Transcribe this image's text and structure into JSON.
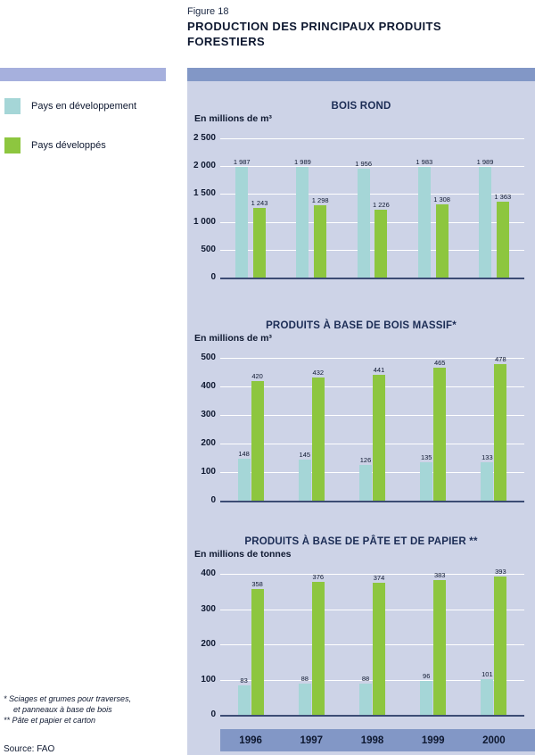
{
  "figure": {
    "label": "Figure 18",
    "title_line1": "PRODUCTION DES PRINCIPAUX PRODUITS",
    "title_line2": "FORESTIERS"
  },
  "legend": {
    "items": [
      {
        "label": "Pays en développement",
        "color": "#a5d6d7"
      },
      {
        "label": "Pays développés",
        "color": "#8dc63f"
      }
    ]
  },
  "footnotes": {
    "line1": "*  Sciages et grumes pour traverses,",
    "line2": "et panneaux à base de bois",
    "line3": "** Pâte et papier et carton"
  },
  "source": "Source: FAO",
  "colors": {
    "panel_bg": "#cdd3e7",
    "header_bar": "#8297c6",
    "left_deco_bar": "#a6b0dd",
    "developing": "#a5d6d7",
    "developed": "#8dc63f",
    "axis": "#3c4c74",
    "gridline": "#ffffff"
  },
  "x_axis": {
    "years": [
      "1996",
      "1997",
      "1998",
      "1999",
      "2000"
    ]
  },
  "chart_data": [
    {
      "type": "bar",
      "title": "BOIS ROND",
      "unit": "En millions de m³",
      "categories": [
        "1996",
        "1997",
        "1998",
        "1999",
        "2000"
      ],
      "series": [
        {
          "name": "Pays en développement",
          "color": "#a5d6d7",
          "values": [
            1987,
            1989,
            1956,
            1983,
            1989
          ]
        },
        {
          "name": "Pays développés",
          "color": "#8dc63f",
          "values": [
            1243,
            1298,
            1226,
            1308,
            1363
          ]
        }
      ],
      "ylim": [
        0,
        2500
      ],
      "yticks": [
        0,
        500,
        1000,
        1500,
        2000,
        2500
      ],
      "grid": true,
      "legend_position": "left"
    },
    {
      "type": "bar",
      "title": "PRODUITS À BASE DE BOIS MASSIF*",
      "unit": "En millions de m³",
      "categories": [
        "1996",
        "1997",
        "1998",
        "1999",
        "2000"
      ],
      "series": [
        {
          "name": "Pays en développement",
          "color": "#a5d6d7",
          "values": [
            148,
            145,
            126,
            135,
            133
          ]
        },
        {
          "name": "Pays développés",
          "color": "#8dc63f",
          "values": [
            420,
            432,
            441,
            465,
            478
          ]
        }
      ],
      "ylim": [
        0,
        500
      ],
      "yticks": [
        0,
        100,
        200,
        300,
        400,
        500
      ],
      "grid": true,
      "legend_position": "left"
    },
    {
      "type": "bar",
      "title": "PRODUITS À BASE DE PÂTE ET DE PAPIER **",
      "unit": "En millions de tonnes",
      "categories": [
        "1996",
        "1997",
        "1998",
        "1999",
        "2000"
      ],
      "series": [
        {
          "name": "Pays en développement",
          "color": "#a5d6d7",
          "values": [
            83,
            88,
            88,
            96,
            101
          ]
        },
        {
          "name": "Pays développés",
          "color": "#8dc63f",
          "values": [
            358,
            376,
            374,
            383,
            393
          ]
        }
      ],
      "ylim": [
        0,
        400
      ],
      "yticks": [
        0,
        100,
        200,
        300,
        400
      ],
      "grid": true,
      "legend_position": "left"
    }
  ]
}
